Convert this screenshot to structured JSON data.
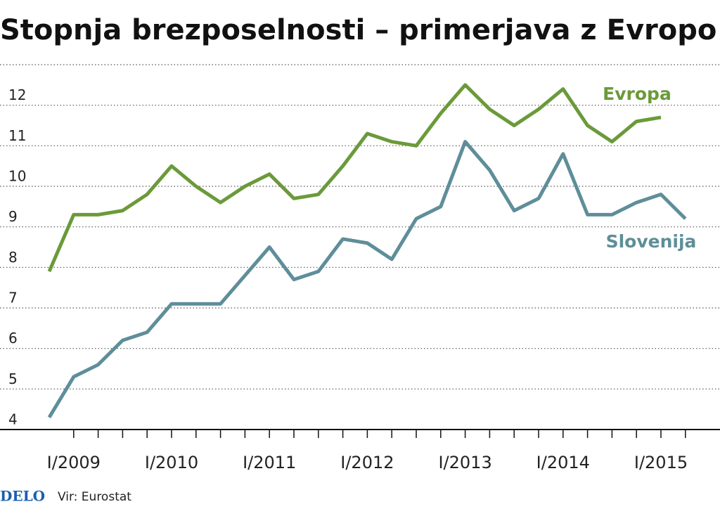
{
  "chart_data": {
    "type": "line",
    "title": "Stopnja brezposelnosti – primerjava z Evropo",
    "logo": "DELO",
    "source": "Vir: Eurostat",
    "categories": [
      null,
      "I/2009",
      null,
      null,
      null,
      "I/2010",
      null,
      null,
      null,
      "I/2011",
      null,
      null,
      null,
      "I/2012",
      null,
      null,
      null,
      "I/2013",
      null,
      null,
      null,
      "I/2014",
      null,
      null,
      null,
      "I/2015",
      null
    ],
    "series": [
      {
        "name": "Evropa",
        "color": "#6b9a3a",
        "values": [
          7.9,
          9.3,
          9.3,
          9.4,
          9.8,
          10.5,
          10.0,
          9.6,
          10.0,
          10.3,
          9.7,
          9.8,
          10.5,
          11.3,
          11.1,
          11.0,
          11.8,
          12.5,
          11.9,
          11.5,
          11.9,
          12.4,
          11.5,
          11.1,
          11.6,
          11.7,
          null
        ]
      },
      {
        "name": "Slovenija",
        "color": "#5e8e99",
        "values": [
          4.3,
          5.3,
          5.6,
          6.2,
          6.4,
          7.1,
          7.1,
          7.1,
          7.8,
          8.5,
          7.7,
          7.9,
          8.7,
          8.6,
          8.2,
          9.2,
          9.5,
          11.1,
          10.4,
          9.4,
          9.7,
          10.8,
          9.3,
          9.3,
          9.6,
          9.8,
          9.2
        ]
      }
    ],
    "ylim": [
      4,
      13
    ],
    "yticks": [
      4,
      5,
      6,
      7,
      8,
      9,
      10,
      11,
      12
    ],
    "grid": true
  }
}
